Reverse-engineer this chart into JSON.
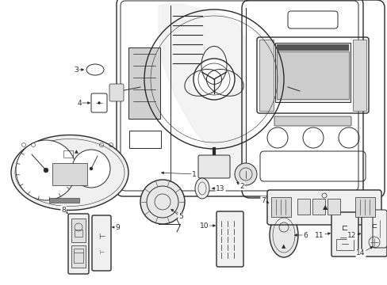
{
  "bg": "#ffffff",
  "lc": "#2a2a2a",
  "fig_w": 4.89,
  "fig_h": 3.6,
  "dpi": 100
}
